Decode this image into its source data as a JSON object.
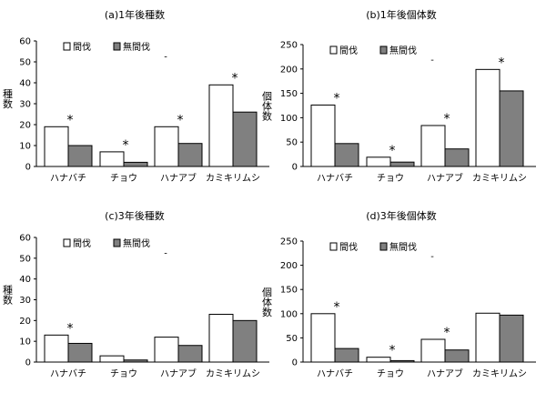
{
  "chart_data": [
    {
      "type": "bar",
      "title": "(a)1年後種数",
      "ylabel": "種数",
      "ylim": [
        0,
        60
      ],
      "yticks": [
        0,
        10,
        20,
        30,
        40,
        50,
        60
      ],
      "categories": [
        "ハナバチ",
        "チョウ",
        "ハナアブ",
        "カミキリムシ"
      ],
      "series": [
        {
          "name": "間伐",
          "color": "#ffffff",
          "values": [
            19,
            7,
            19,
            39
          ]
        },
        {
          "name": "無間伐",
          "color": "#808080",
          "values": [
            10,
            2,
            11,
            26
          ]
        }
      ],
      "significance": [
        "*",
        "*",
        "*",
        "*"
      ],
      "nonsignificant_marks": [
        "",
        "-",
        "",
        ""
      ],
      "legend_position": "top-left",
      "grid": false
    },
    {
      "type": "bar",
      "title": "(b)1年後個体数",
      "ylabel": "個体数",
      "ylim": [
        0,
        250
      ],
      "yticks": [
        0,
        50,
        100,
        150,
        200,
        250
      ],
      "categories": [
        "ハナバチ",
        "チョウ",
        "ハナアブ",
        "カミキリムシ"
      ],
      "series": [
        {
          "name": "間伐",
          "color": "#ffffff",
          "values": [
            126,
            19,
            84,
            199
          ]
        },
        {
          "name": "無間伐",
          "color": "#808080",
          "values": [
            47,
            9,
            36,
            155
          ]
        }
      ],
      "significance": [
        "*",
        "*",
        "*",
        "*"
      ],
      "nonsignificant_marks": [
        "",
        "-",
        "",
        ""
      ],
      "legend_position": "top-left",
      "grid": false
    },
    {
      "type": "bar",
      "title": "(c)3年後種数",
      "ylabel": "種数",
      "ylim": [
        0,
        60
      ],
      "yticks": [
        0,
        10,
        20,
        30,
        40,
        50,
        60
      ],
      "categories": [
        "ハナバチ",
        "チョウ",
        "ハナアブ",
        "カミキリムシ"
      ],
      "series": [
        {
          "name": "間伐",
          "color": "#ffffff",
          "values": [
            13,
            3,
            12,
            23
          ]
        },
        {
          "name": "無間伐",
          "color": "#808080",
          "values": [
            9,
            1,
            8,
            20
          ]
        }
      ],
      "significance": [
        "*",
        "",
        "",
        ""
      ],
      "nonsignificant_marks": [
        "",
        "-",
        "",
        ""
      ],
      "legend_position": "top-left",
      "grid": false
    },
    {
      "type": "bar",
      "title": "(d)3年後個体数",
      "ylabel": "個体数",
      "ylim": [
        0,
        250
      ],
      "yticks": [
        0,
        50,
        100,
        150,
        200,
        250
      ],
      "categories": [
        "ハナバチ",
        "チョウ",
        "ハナアブ",
        "カミキリムシ"
      ],
      "series": [
        {
          "name": "間伐",
          "color": "#ffffff",
          "values": [
            100,
            10,
            47,
            101
          ]
        },
        {
          "name": "無間伐",
          "color": "#808080",
          "values": [
            28,
            3,
            25,
            97
          ]
        }
      ],
      "significance": [
        "*",
        "*",
        "*",
        ""
      ],
      "nonsignificant_marks": [
        "",
        "-",
        "",
        ""
      ],
      "legend_position": "top-left",
      "grid": false
    }
  ]
}
